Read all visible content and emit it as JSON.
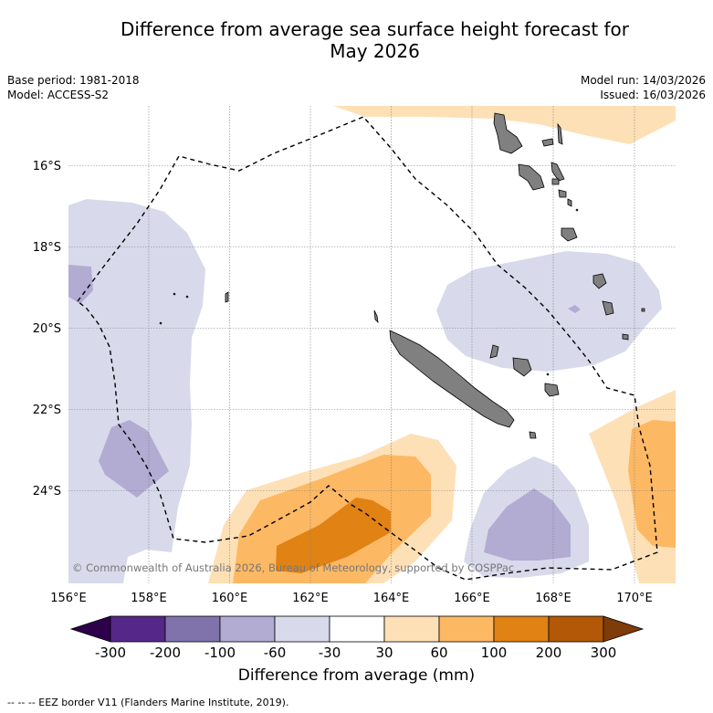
{
  "title": {
    "line1": "Difference from average sea surface height forecast for",
    "line2": "May 2026"
  },
  "info_left": {
    "base_period": "Base period: 1981-2018",
    "model": "Model: ACCESS-S2"
  },
  "info_right": {
    "model_run": "Model run: 14/03/2026",
    "issued": "Issued: 16/03/2026"
  },
  "map": {
    "lat_labels": [
      "16°S",
      "18°S",
      "20°S",
      "22°S",
      "24°S"
    ],
    "lon_labels": [
      "156°E",
      "158°E",
      "160°E",
      "162°E",
      "164°E",
      "166°E",
      "168°E",
      "170°E"
    ],
    "copyright": "© Commonwealth of Australia 2026, Bureau of Meteorology, supported by COSPPac"
  },
  "colorbar": {
    "ticks": [
      "-300",
      "-200",
      "-100",
      "-60",
      "-30",
      "30",
      "60",
      "100",
      "200",
      "300"
    ],
    "colors": [
      "#2d004b",
      "#542788",
      "#8073ac",
      "#b2abd2",
      "#d8daeb",
      "#ffffff",
      "#fee0b6",
      "#fdb863",
      "#e08214",
      "#b35806",
      "#7f3b08"
    ],
    "label": "Difference from average (mm)"
  },
  "legend": {
    "eez": "-- -- -- EEZ border V11 (Flanders Marine Institute, 2019)."
  }
}
